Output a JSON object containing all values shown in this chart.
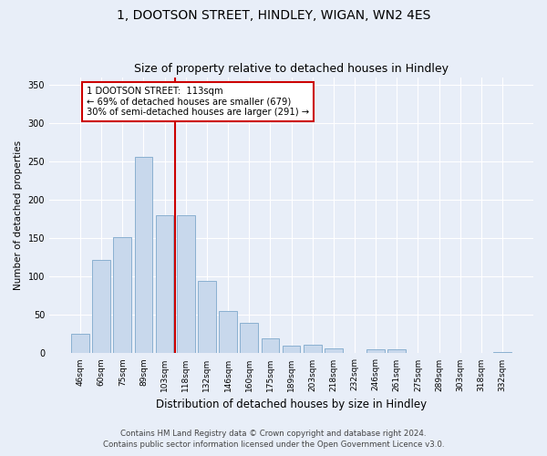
{
  "title1": "1, DOOTSON STREET, HINDLEY, WIGAN, WN2 4ES",
  "title2": "Size of property relative to detached houses in Hindley",
  "xlabel": "Distribution of detached houses by size in Hindley",
  "ylabel": "Number of detached properties",
  "categories": [
    "46sqm",
    "60sqm",
    "75sqm",
    "89sqm",
    "103sqm",
    "118sqm",
    "132sqm",
    "146sqm",
    "160sqm",
    "175sqm",
    "189sqm",
    "203sqm",
    "218sqm",
    "232sqm",
    "246sqm",
    "261sqm",
    "275sqm",
    "289sqm",
    "303sqm",
    "318sqm",
    "332sqm"
  ],
  "values": [
    25,
    122,
    152,
    256,
    180,
    180,
    95,
    55,
    40,
    20,
    10,
    11,
    7,
    0,
    5,
    5,
    0,
    0,
    0,
    0,
    2
  ],
  "bar_color": "#c8d8ec",
  "bar_edge_color": "#8ab0d0",
  "vline_color": "#cc0000",
  "vline_x": 4.5,
  "annotation_text": "1 DOOTSON STREET:  113sqm\n← 69% of detached houses are smaller (679)\n30% of semi-detached houses are larger (291) →",
  "annotation_box_color": "white",
  "annotation_box_edge_color": "#cc0000",
  "ylim": [
    0,
    360
  ],
  "yticks": [
    0,
    50,
    100,
    150,
    200,
    250,
    300,
    350
  ],
  "footer1": "Contains HM Land Registry data © Crown copyright and database right 2024.",
  "footer2": "Contains public sector information licensed under the Open Government Licence v3.0.",
  "bg_color": "#e8eef8",
  "grid_color": "#ffffff",
  "title_fontsize": 10,
  "subtitle_fontsize": 9,
  "bar_width": 0.85
}
